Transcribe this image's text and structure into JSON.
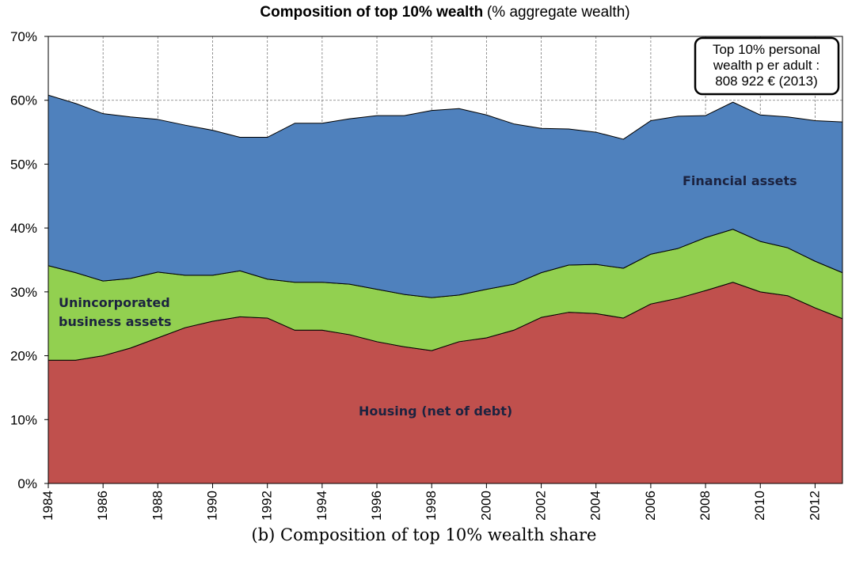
{
  "chart_data": {
    "type": "stacked-area",
    "title": "Composition of top 10% wealth",
    "subtitle": "(% aggregate wealth)",
    "annotation": [
      "Top 10% personal",
      "wealth p er adult :",
      "808 922 € (2013)"
    ],
    "x": [
      1984,
      1985,
      1986,
      1987,
      1988,
      1989,
      1990,
      1991,
      1992,
      1993,
      1994,
      1995,
      1996,
      1997,
      1998,
      1999,
      2000,
      2001,
      2002,
      2003,
      2004,
      2005,
      2006,
      2007,
      2008,
      2009,
      2010,
      2011,
      2012,
      2013
    ],
    "series": [
      {
        "name": "Housing (net of debt)",
        "color": "#c0504d",
        "values": [
          19.3,
          19.3,
          20.0,
          21.2,
          22.8,
          24.4,
          25.4,
          26.1,
          25.9,
          24.0,
          24.0,
          23.3,
          22.2,
          21.4,
          20.8,
          22.2,
          22.8,
          24.0,
          26.0,
          26.8,
          26.6,
          25.9,
          28.1,
          29.0,
          30.2,
          31.5,
          30.0,
          29.4,
          27.5,
          25.8
        ]
      },
      {
        "name": "Unincorporated business assets",
        "color": "#92d050",
        "values": [
          14.8,
          13.7,
          11.7,
          10.9,
          10.3,
          8.2,
          7.2,
          7.2,
          6.1,
          7.5,
          7.5,
          7.9,
          8.2,
          8.2,
          8.3,
          7.3,
          7.6,
          7.2,
          7.0,
          7.4,
          7.7,
          7.8,
          7.8,
          7.8,
          8.3,
          8.3,
          7.9,
          7.5,
          7.3,
          7.2
        ]
      },
      {
        "name": "Financial assets",
        "color": "#4f81bd",
        "values": [
          26.7,
          26.5,
          26.2,
          25.3,
          23.9,
          23.5,
          22.7,
          20.9,
          22.2,
          24.9,
          24.9,
          25.9,
          27.2,
          28.0,
          29.3,
          29.2,
          27.3,
          25.1,
          22.6,
          21.3,
          20.7,
          20.2,
          20.9,
          20.7,
          19.1,
          19.9,
          19.8,
          20.5,
          22.0,
          23.6
        ]
      }
    ],
    "xlim": [
      1984,
      2013
    ],
    "xticks": [
      1984,
      1986,
      1988,
      1990,
      1992,
      1994,
      1996,
      1998,
      2000,
      2002,
      2004,
      2006,
      2008,
      2010,
      2012
    ],
    "ylim": [
      0,
      70
    ],
    "yticks": [
      {
        "value": 0,
        "label": "0%"
      },
      {
        "value": 10,
        "label": "10%"
      },
      {
        "value": 20,
        "label": "20%"
      },
      {
        "value": 30,
        "label": "30%"
      },
      {
        "value": 40,
        "label": "40%"
      },
      {
        "value": 50,
        "label": "50%"
      },
      {
        "value": 60,
        "label": "60%"
      },
      {
        "value": 70,
        "label": "70%"
      }
    ],
    "grid": true
  },
  "caption": "(b) Composition of top 10% wealth share"
}
